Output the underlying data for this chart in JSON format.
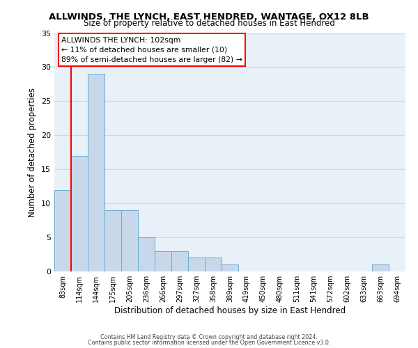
{
  "title": "ALLWINDS, THE LYNCH, EAST HENDRED, WANTAGE, OX12 8LB",
  "subtitle": "Size of property relative to detached houses in East Hendred",
  "xlabel": "Distribution of detached houses by size in East Hendred",
  "ylabel": "Number of detached properties",
  "bin_labels": [
    "83sqm",
    "114sqm",
    "144sqm",
    "175sqm",
    "205sqm",
    "236sqm",
    "266sqm",
    "297sqm",
    "327sqm",
    "358sqm",
    "389sqm",
    "419sqm",
    "450sqm",
    "480sqm",
    "511sqm",
    "541sqm",
    "572sqm",
    "602sqm",
    "633sqm",
    "663sqm",
    "694sqm"
  ],
  "bar_heights": [
    12,
    17,
    29,
    9,
    9,
    5,
    3,
    3,
    2,
    2,
    1,
    0,
    0,
    0,
    0,
    0,
    0,
    0,
    0,
    1,
    0
  ],
  "bar_color": "#c8d8eb",
  "bar_edge_color": "#6aaad4",
  "ylim": [
    0,
    35
  ],
  "yticks": [
    0,
    5,
    10,
    15,
    20,
    25,
    30,
    35
  ],
  "annotation_title": "ALLWINDS THE LYNCH: 102sqm",
  "annotation_line1": "← 11% of detached houses are smaller (10)",
  "annotation_line2": "89% of semi-detached houses are larger (82) →",
  "grid_color": "#c8d8e8",
  "background_color": "#e8f0f8",
  "footer_line1": "Contains HM Land Registry data © Crown copyright and database right 2024.",
  "footer_line2": "Contains public sector information licensed under the Open Government Licence v3.0."
}
